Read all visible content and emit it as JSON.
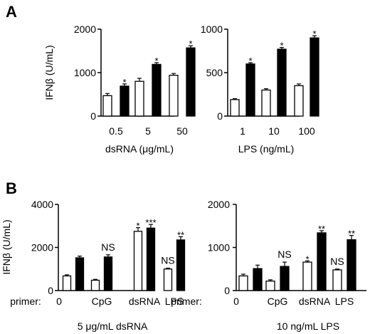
{
  "colors": {
    "open_bar": "#ffffff",
    "filled_bar": "#000000",
    "axis": "#000000"
  },
  "panels": [
    {
      "letter": "A"
    },
    {
      "letter": "B"
    }
  ],
  "chart_data": [
    {
      "panel": "A",
      "type": "bar",
      "title": "",
      "ylabel": "IFNβ (U/mL)",
      "xlabel": "dsRNA (μg/mL)",
      "ylim": [
        0,
        2000
      ],
      "yticks": [
        0,
        1000,
        2000
      ],
      "categories": [
        "0.5",
        "5",
        "50"
      ],
      "series": [
        {
          "values": [
            470,
            800,
            940
          ],
          "errors": [
            50,
            70,
            40
          ],
          "fill": "open"
        },
        {
          "values": [
            690,
            1190,
            1570
          ],
          "errors": [
            50,
            40,
            50
          ],
          "fill": "filled"
        }
      ],
      "annotations": [
        {
          "category_index": 0,
          "series_index": 1,
          "text": "*"
        },
        {
          "category_index": 1,
          "series_index": 1,
          "text": "*"
        },
        {
          "category_index": 2,
          "series_index": 1,
          "text": "*"
        }
      ]
    },
    {
      "panel": "A",
      "type": "bar",
      "title": "",
      "ylabel": "",
      "xlabel": "LPS (ng/mL)",
      "ylim": [
        0,
        1000
      ],
      "yticks": [
        0,
        500,
        1000
      ],
      "categories": [
        "1",
        "10",
        "100"
      ],
      "series": [
        {
          "values": [
            190,
            300,
            350
          ],
          "errors": [
            10,
            15,
            20
          ],
          "fill": "open"
        },
        {
          "values": [
            600,
            770,
            900
          ],
          "errors": [
            15,
            20,
            25
          ],
          "fill": "filled"
        }
      ],
      "annotations": [
        {
          "category_index": 0,
          "series_index": 1,
          "text": "*"
        },
        {
          "category_index": 1,
          "series_index": 1,
          "text": "*"
        },
        {
          "category_index": 2,
          "series_index": 1,
          "text": "*"
        }
      ]
    },
    {
      "panel": "B",
      "type": "bar",
      "title": "",
      "ylabel": "IFNβ (U/mL)",
      "xlabel": "5 μg/mL dsRNA",
      "x_prefix": "primer:",
      "ylim": [
        0,
        4000
      ],
      "yticks": [
        0,
        2000,
        4000
      ],
      "categories": [
        "0",
        "CpG",
        "dsRNA",
        "LPS"
      ],
      "series": [
        {
          "values": [
            680,
            480,
            2750,
            1000
          ],
          "errors": [
            50,
            40,
            170,
            40
          ],
          "fill": "open"
        },
        {
          "values": [
            1520,
            1560,
            2900,
            2350
          ],
          "errors": [
            80,
            100,
            170,
            150
          ],
          "fill": "filled"
        }
      ],
      "annotations": [
        {
          "category_index": 1,
          "series_index": 1,
          "text": "NS"
        },
        {
          "category_index": 2,
          "series_index": 0,
          "text": "*"
        },
        {
          "category_index": 2,
          "series_index": 1,
          "text": "***"
        },
        {
          "category_index": 3,
          "series_index": 0,
          "text": "NS"
        },
        {
          "category_index": 3,
          "series_index": 1,
          "text": "**"
        }
      ]
    },
    {
      "panel": "B",
      "type": "bar",
      "title": "",
      "ylabel": "",
      "xlabel": "10 ng/mL LPS",
      "x_prefix": "primer:",
      "ylim": [
        0,
        2000
      ],
      "yticks": [
        0,
        1000,
        2000
      ],
      "categories": [
        "0",
        "CpG",
        "dsRNA",
        "LPS"
      ],
      "series": [
        {
          "values": [
            340,
            220,
            660,
            480
          ],
          "errors": [
            40,
            30,
            30,
            20
          ],
          "fill": "open"
        },
        {
          "values": [
            510,
            560,
            1340,
            1180
          ],
          "errors": [
            80,
            100,
            50,
            100
          ],
          "fill": "filled"
        }
      ],
      "annotations": [
        {
          "category_index": 1,
          "series_index": 1,
          "text": "NS"
        },
        {
          "category_index": 2,
          "series_index": 0,
          "text": "*"
        },
        {
          "category_index": 2,
          "series_index": 1,
          "text": "**"
        },
        {
          "category_index": 3,
          "series_index": 0,
          "text": "NS"
        },
        {
          "category_index": 3,
          "series_index": 1,
          "text": "**"
        }
      ]
    }
  ]
}
